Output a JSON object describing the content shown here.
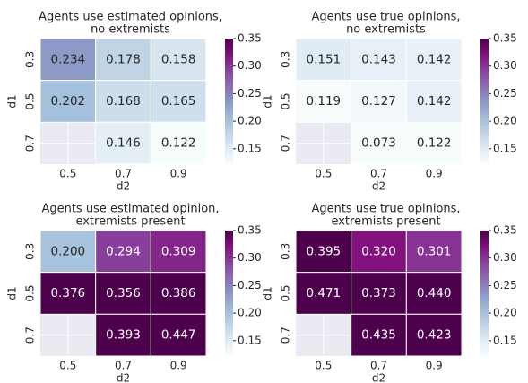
{
  "chart_data": [
    {
      "type": "heatmap",
      "title": [
        "Agents use estimated opinions,",
        "no extremists"
      ],
      "xlabel": "d2",
      "ylabel": "d1",
      "x": [
        "0.5",
        "0.7",
        "0.9"
      ],
      "y": [
        "0.3",
        "0.5",
        "0.7"
      ],
      "values": [
        [
          0.234,
          0.178,
          0.158
        ],
        [
          0.202,
          0.168,
          0.165
        ],
        [
          null,
          0.146,
          0.122
        ]
      ],
      "value_labels": [
        [
          "0.234",
          "0.178",
          "0.158"
        ],
        [
          "0.202",
          "0.168",
          "0.165"
        ],
        [
          null,
          "0.146",
          "0.122"
        ]
      ],
      "colormap": "BuPu",
      "clim": [
        0.122,
        0.35
      ],
      "cticks": [
        0.15,
        {
          "value": 0.2,
          "label": "0.20"
        },
        0.25,
        {
          "value": 0.3,
          "label": "0.30"
        },
        0.35
      ]
    },
    {
      "type": "heatmap",
      "title": [
        "Agents use true opinions,",
        "no extremists"
      ],
      "xlabel": "d2",
      "ylabel": "d1",
      "x": [
        "0.5",
        "0.7",
        "0.9"
      ],
      "y": [
        "0.3",
        "0.5",
        "0.7"
      ],
      "values": [
        [
          0.151,
          0.143,
          0.142
        ],
        [
          0.119,
          0.127,
          0.142
        ],
        [
          null,
          0.073,
          0.122
        ]
      ],
      "value_labels": [
        [
          "0.151",
          "0.143",
          "0.142"
        ],
        [
          "0.119",
          "0.127",
          "0.142"
        ],
        [
          null,
          "0.073",
          "0.122"
        ]
      ],
      "colormap": "BuPu",
      "clim": [
        0.122,
        0.35
      ],
      "cticks": [
        0.15,
        {
          "value": 0.2,
          "label": "0.20"
        },
        0.25,
        {
          "value": 0.3,
          "label": "0.30"
        },
        0.35
      ]
    },
    {
      "type": "heatmap",
      "title": [
        "Agents use estimated opinion,",
        "extremists present"
      ],
      "xlabel": "d2",
      "ylabel": "d1",
      "x": [
        "0.5",
        "0.7",
        "0.9"
      ],
      "y": [
        "0.3",
        "0.5",
        "0.7"
      ],
      "values": [
        [
          0.2,
          0.294,
          0.309
        ],
        [
          0.376,
          0.356,
          0.386
        ],
        [
          null,
          0.393,
          0.447
        ]
      ],
      "value_labels": [
        [
          "0.200",
          "0.294",
          "0.309"
        ],
        [
          "0.376",
          "0.356",
          "0.386"
        ],
        [
          null,
          "0.393",
          "0.447"
        ]
      ],
      "colormap": "BuPu",
      "clim": [
        0.122,
        0.35
      ],
      "cticks": [
        0.15,
        {
          "value": 0.2,
          "label": "0.20"
        },
        0.25,
        {
          "value": 0.3,
          "label": "0.30"
        },
        0.35
      ]
    },
    {
      "type": "heatmap",
      "title": [
        "Agents use true opinions,",
        "extremists present"
      ],
      "xlabel": "d2",
      "ylabel": "d1",
      "x": [
        "0.5",
        "0.7",
        "0.9"
      ],
      "y": [
        "0.3",
        "0.5",
        "0.7"
      ],
      "values": [
        [
          0.395,
          0.32,
          0.301
        ],
        [
          0.471,
          0.373,
          0.44
        ],
        [
          null,
          0.435,
          0.423
        ]
      ],
      "value_labels": [
        [
          "0.395",
          "0.320",
          "0.301"
        ],
        [
          "0.471",
          "0.373",
          "0.440"
        ],
        [
          null,
          "0.435",
          "0.423"
        ]
      ],
      "colormap": "BuPu",
      "clim": [
        0.122,
        0.35
      ],
      "cticks": [
        0.15,
        {
          "value": 0.2,
          "label": "0.20"
        },
        0.25,
        {
          "value": 0.3,
          "label": "0.30"
        },
        0.35
      ]
    }
  ]
}
